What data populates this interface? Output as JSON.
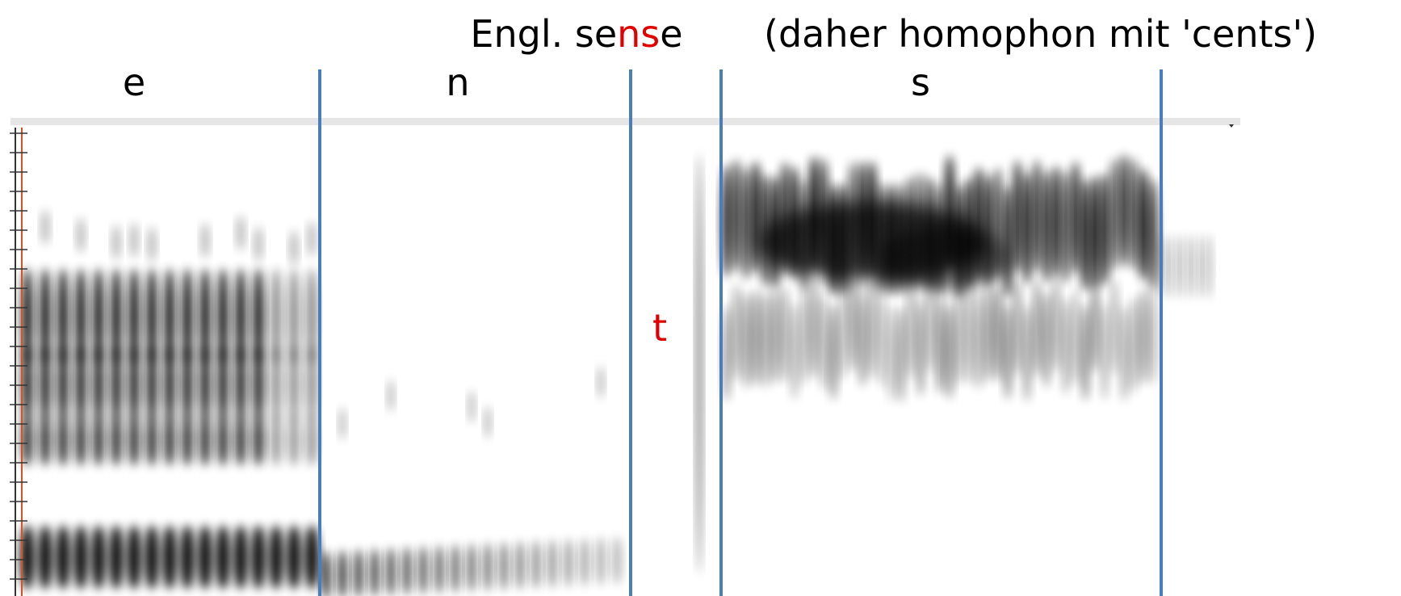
{
  "title": {
    "parts": [
      "Engl. se",
      "ns",
      "e"
    ],
    "note": "(daher homophon mit 'cents')"
  },
  "segments": [
    "e",
    "n",
    "s"
  ],
  "annotation": "t"
}
